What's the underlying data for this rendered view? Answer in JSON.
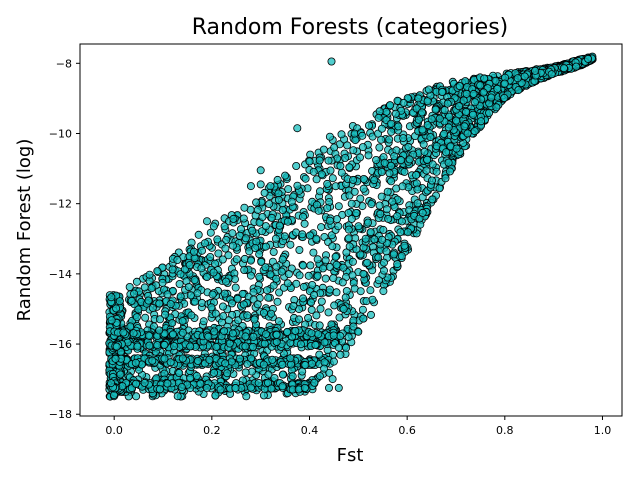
{
  "chart_data": {
    "type": "scatter",
    "title": "Random Forests (categories)",
    "xlabel": "Fst",
    "ylabel": "Random Forest (log)",
    "xlim": [
      -0.07,
      1.04
    ],
    "ylim": [
      -18.05,
      -7.45
    ],
    "xticks": [
      0.0,
      0.2,
      0.4,
      0.6,
      0.8,
      1.0
    ],
    "xtick_labels": [
      "0.0",
      "0.2",
      "0.4",
      "0.6",
      "0.8",
      "1.0"
    ],
    "yticks": [
      -18,
      -16,
      -14,
      -12,
      -10,
      -8
    ],
    "ytick_labels": [
      "−18",
      "−16",
      "−14",
      "−12",
      "−10",
      "−8"
    ],
    "grid": false,
    "marker_color": "#17bebe",
    "marker_edge_color": "#000000",
    "upper_envelope": [
      [
        -0.01,
        -14.6
      ],
      [
        0.05,
        -14.2
      ],
      [
        0.1,
        -13.7
      ],
      [
        0.15,
        -13.1
      ],
      [
        0.2,
        -12.6
      ],
      [
        0.25,
        -12.2
      ],
      [
        0.3,
        -11.8
      ],
      [
        0.35,
        -11.0
      ],
      [
        0.4,
        -10.5
      ],
      [
        0.45,
        -10.0
      ],
      [
        0.5,
        -9.7
      ],
      [
        0.55,
        -9.3
      ],
      [
        0.6,
        -8.9
      ],
      [
        0.65,
        -8.7
      ],
      [
        0.7,
        -8.5
      ],
      [
        0.75,
        -8.4
      ],
      [
        0.8,
        -8.3
      ],
      [
        0.85,
        -8.2
      ],
      [
        0.9,
        -8.1
      ],
      [
        0.95,
        -7.9
      ],
      [
        0.98,
        -7.8
      ]
    ],
    "lower_envelope": [
      [
        -0.01,
        -17.5
      ],
      [
        0.1,
        -17.5
      ],
      [
        0.2,
        -17.5
      ],
      [
        0.3,
        -17.5
      ],
      [
        0.4,
        -17.4
      ],
      [
        0.45,
        -17.0
      ],
      [
        0.5,
        -15.8
      ],
      [
        0.55,
        -14.6
      ],
      [
        0.6,
        -13.4
      ],
      [
        0.65,
        -12.0
      ],
      [
        0.7,
        -10.8
      ],
      [
        0.75,
        -9.8
      ],
      [
        0.8,
        -9.0
      ],
      [
        0.85,
        -8.6
      ],
      [
        0.9,
        -8.3
      ],
      [
        0.95,
        -8.1
      ],
      [
        0.98,
        -7.9
      ]
    ],
    "bands": [
      {
        "y": -17.2,
        "x_max": 0.41
      },
      {
        "y": -16.5,
        "x_max": 0.44
      },
      {
        "y": -16.0,
        "x_max": 0.46
      },
      {
        "y": -15.7,
        "x_max": 0.47
      }
    ],
    "outliers": [
      [
        0.445,
        -7.95
      ],
      [
        0.375,
        -9.85
      ],
      [
        0.3,
        -11.05
      ],
      [
        0.3,
        -11.45
      ],
      [
        0.28,
        -11.5
      ],
      [
        0.35,
        -11.2
      ],
      [
        0.32,
        -11.5
      ],
      [
        0.19,
        -12.5
      ],
      [
        0.46,
        -17.25
      ],
      [
        0.44,
        -17.25
      ],
      [
        0.41,
        -17.1
      ],
      [
        0.47,
        -15.0
      ],
      [
        0.49,
        -15.5
      ],
      [
        0.48,
        -15.8
      ],
      [
        0.5,
        -15.65
      ],
      [
        0.46,
        -16.1
      ],
      [
        0.42,
        -16.3
      ],
      [
        0.45,
        -16.5
      ],
      [
        0.43,
        -16.7
      ]
    ]
  }
}
